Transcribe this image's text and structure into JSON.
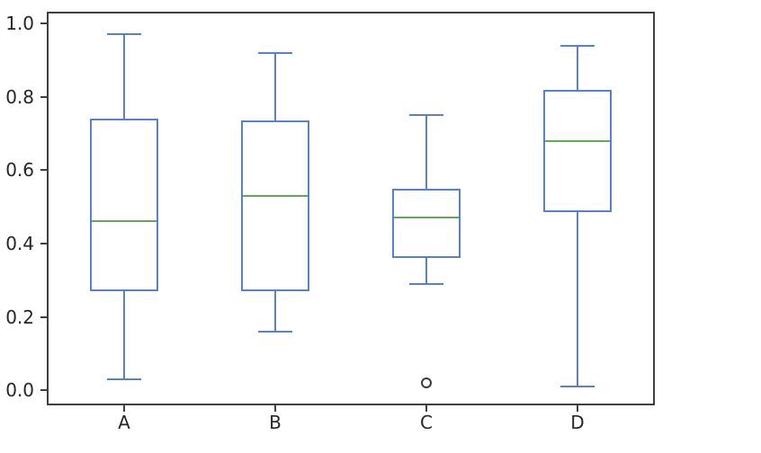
{
  "chart_data": {
    "type": "box",
    "title": "",
    "xlabel": "",
    "ylabel": "",
    "grid": false,
    "legend": null,
    "categories": [
      "A",
      "B",
      "C",
      "D"
    ],
    "boxes": [
      {
        "label": "A",
        "whisker_low": 0.03,
        "q1": 0.27,
        "median": 0.46,
        "q3": 0.74,
        "whisker_high": 0.97,
        "outliers": []
      },
      {
        "label": "B",
        "whisker_low": 0.16,
        "q1": 0.27,
        "median": 0.53,
        "q3": 0.735,
        "whisker_high": 0.92,
        "outliers": []
      },
      {
        "label": "C",
        "whisker_low": 0.29,
        "q1": 0.36,
        "median": 0.47,
        "q3": 0.55,
        "whisker_high": 0.75,
        "outliers": [
          0.02
        ]
      },
      {
        "label": "D",
        "whisker_low": 0.01,
        "q1": 0.485,
        "median": 0.68,
        "q3": 0.82,
        "whisker_high": 0.94,
        "outliers": []
      }
    ],
    "yticks": {
      "values": [
        0.0,
        0.2,
        0.4,
        0.6,
        0.8,
        1.0
      ],
      "labels": [
        "0.0",
        "0.2",
        "0.4",
        "0.6",
        "0.8",
        "1.0"
      ]
    },
    "ylim": [
      -0.036,
      1.027
    ],
    "colors": {
      "box": "#5a82be",
      "median": "#64a65a",
      "flier": "#3b3b3b",
      "spine": "#3f3f3f",
      "tick_text": "#262626",
      "background": "#ffffff"
    }
  }
}
